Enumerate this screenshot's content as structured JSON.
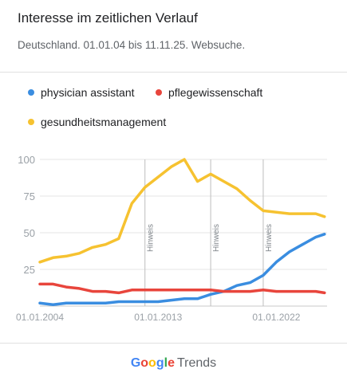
{
  "header": {
    "title": "Interesse im zeitlichen Verlauf",
    "subtitle": "Deutschland. 01.01.04 bis 11.11.25. Websuche."
  },
  "colors": {
    "physician_assistant": "#3a8de0",
    "pflegewissenschaft": "#e8453c",
    "gesundheitsmanagement": "#f6c230",
    "grid": "#e6e6e6",
    "axis_text": "#9aa0a6"
  },
  "chart_data": {
    "type": "line",
    "title": "Interesse im zeitlichen Verlauf",
    "ylim": [
      0,
      100
    ],
    "yticks": [
      25,
      50,
      75,
      100
    ],
    "xlim": [
      "2004-01-01",
      "2025-11-11"
    ],
    "xticks": [
      "01.01.2004",
      "01.01.2013",
      "01.01.2022"
    ],
    "grid": true,
    "legend": "top",
    "annotations": [
      {
        "label": "Hinweis",
        "x": "2012-01-01"
      },
      {
        "label": "Hinweis",
        "x": "2017-01-01"
      },
      {
        "label": "Hinweis",
        "x": "2021-01-01"
      }
    ],
    "x": [
      "2004-01-01",
      "2005-01-01",
      "2006-01-01",
      "2007-01-01",
      "2008-01-01",
      "2009-01-01",
      "2010-01-01",
      "2011-01-01",
      "2012-01-01",
      "2013-01-01",
      "2014-01-01",
      "2015-01-01",
      "2016-01-01",
      "2017-01-01",
      "2018-01-01",
      "2019-01-01",
      "2020-01-01",
      "2021-01-01",
      "2022-01-01",
      "2023-01-01",
      "2024-01-01",
      "2025-01-01",
      "2025-09-01"
    ],
    "series": [
      {
        "name": "physician assistant",
        "values": [
          2,
          1,
          2,
          2,
          2,
          2,
          3,
          3,
          3,
          3,
          4,
          5,
          5,
          8,
          10,
          14,
          16,
          21,
          30,
          37,
          42,
          47,
          49
        ]
      },
      {
        "name": "pflegewissenschaft",
        "values": [
          15,
          15,
          13,
          12,
          10,
          10,
          9,
          11,
          11,
          11,
          11,
          11,
          11,
          11,
          10,
          10,
          10,
          11,
          10,
          10,
          10,
          10,
          9
        ]
      },
      {
        "name": "gesundheitsmanagement",
        "values": [
          30,
          33,
          34,
          36,
          40,
          42,
          46,
          70,
          81,
          88,
          95,
          100,
          85,
          90,
          85,
          80,
          72,
          65,
          64,
          63,
          63,
          63,
          61
        ]
      }
    ]
  },
  "footer": {
    "logo": [
      "G",
      "o",
      "o",
      "g",
      "l",
      "e"
    ],
    "logo_colors": [
      "#4285f4",
      "#ea4335",
      "#fbbc05",
      "#4285f4",
      "#34a853",
      "#ea4335"
    ],
    "product": "Trends"
  }
}
